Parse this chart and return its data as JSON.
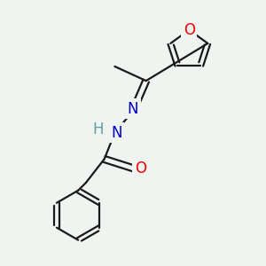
{
  "background_color": "#f0f4f0",
  "bond_color": "#1a1a1a",
  "atom_colors": {
    "O": "#ee0000",
    "N": "#0000cc",
    "H": "#5f9ea0",
    "C": "#1a1a1a"
  },
  "figsize": [
    3.0,
    3.0
  ],
  "dpi": 100,
  "xlim": [
    0,
    10
  ],
  "ylim": [
    0,
    10
  ]
}
